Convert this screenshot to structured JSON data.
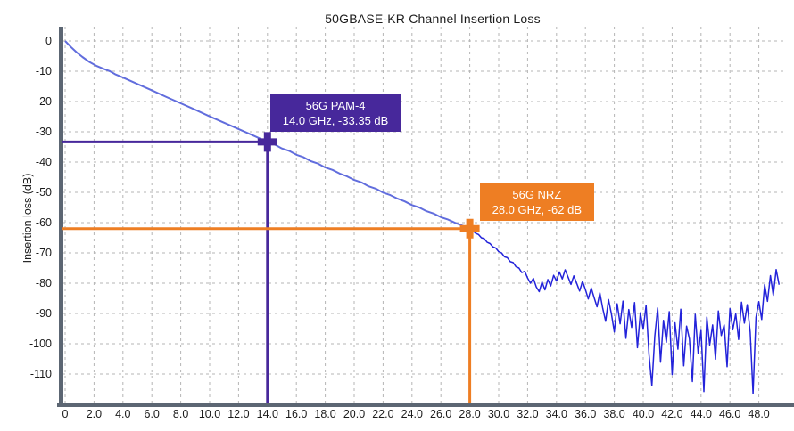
{
  "chart_data": {
    "type": "line",
    "title": "50GBASE-KR Channel Insertion Loss",
    "xlabel": "",
    "ylabel": "Insertion loss (dB)",
    "grid": true,
    "legend": "none",
    "xlim": [
      0,
      49.6
    ],
    "ylim": [
      -121,
      4.5
    ],
    "x_ticks": [
      0,
      2,
      4,
      6,
      8,
      10,
      12,
      14,
      16,
      18,
      20,
      22,
      24,
      26,
      28,
      30,
      32,
      34,
      36,
      38,
      40,
      42,
      44,
      46,
      48
    ],
    "x_tick_labels": [
      "0",
      "2.0",
      "4.0",
      "6.0",
      "8.0",
      "10.0",
      "12.0",
      "14.0",
      "16.0",
      "18.0",
      "20.0",
      "22.0",
      "24.0",
      "26.0",
      "28.0",
      "30.0",
      "32.0",
      "34.0",
      "36.0",
      "38.0",
      "40.0",
      "42.0",
      "44.0",
      "46.0",
      "48.0"
    ],
    "y_ticks": [
      0,
      -10,
      -20,
      -30,
      -40,
      -50,
      -60,
      -70,
      -80,
      -90,
      -100,
      -110
    ],
    "y_tick_labels": [
      "0",
      "-10",
      "-20",
      "-30",
      "-40",
      "-50",
      "-60",
      "-70",
      "-80",
      "-90",
      "-100",
      "-110"
    ],
    "axis_color": "#5c6673",
    "grid_color": "#b5b5b5",
    "series": [
      {
        "name": "channel-insertion-loss",
        "color_smooth": "#616ddd",
        "color_noisy": "#2323da",
        "split_x": 28,
        "points": [
          [
            0,
            0
          ],
          [
            0.4,
            -2
          ],
          [
            0.8,
            -3.8
          ],
          [
            1.2,
            -5.3
          ],
          [
            1.7,
            -7
          ],
          [
            2.2,
            -8.3
          ],
          [
            2.7,
            -9.3
          ],
          [
            3.1,
            -10
          ],
          [
            3.5,
            -11.1
          ],
          [
            4,
            -12.1
          ],
          [
            5,
            -14.2
          ],
          [
            6,
            -16.3
          ],
          [
            7,
            -18.5
          ],
          [
            8,
            -20.6
          ],
          [
            9,
            -22.7
          ],
          [
            10,
            -24.9
          ],
          [
            11,
            -27
          ],
          [
            12,
            -29.1
          ],
          [
            13,
            -31.2
          ],
          [
            14,
            -33.35
          ],
          [
            14.5,
            -34.2
          ],
          [
            15,
            -35.5
          ],
          [
            15.5,
            -36.3
          ],
          [
            16,
            -37.6
          ],
          [
            16.5,
            -38.4
          ],
          [
            17,
            -39.7
          ],
          [
            17.5,
            -40.5
          ],
          [
            18,
            -41.8
          ],
          [
            18.5,
            -42.6
          ],
          [
            19,
            -43.8
          ],
          [
            19.5,
            -44.7
          ],
          [
            20,
            -45.9
          ],
          [
            20.5,
            -46.7
          ],
          [
            21,
            -48
          ],
          [
            21.5,
            -48.8
          ],
          [
            22,
            -50.1
          ],
          [
            22.5,
            -50.9
          ],
          [
            23,
            -52.1
          ],
          [
            23.5,
            -53
          ],
          [
            24,
            -54.2
          ],
          [
            24.5,
            -55
          ],
          [
            25,
            -56.2
          ],
          [
            25.5,
            -57
          ],
          [
            26,
            -58.2
          ],
          [
            26.5,
            -59
          ],
          [
            27,
            -60.1
          ],
          [
            27.5,
            -61
          ],
          [
            28,
            -62
          ],
          [
            28.2,
            -62.6
          ],
          [
            28.4,
            -63.5
          ],
          [
            28.6,
            -63.9
          ],
          [
            28.8,
            -65
          ],
          [
            29,
            -65.3
          ],
          [
            29.2,
            -66.5
          ],
          [
            29.4,
            -66.9
          ],
          [
            29.6,
            -68
          ],
          [
            29.8,
            -68.4
          ],
          [
            30,
            -69.6
          ],
          [
            30.2,
            -70
          ],
          [
            30.4,
            -71.3
          ],
          [
            30.6,
            -71.6
          ],
          [
            30.8,
            -72.9
          ],
          [
            31,
            -73.2
          ],
          [
            31.2,
            -74.6
          ],
          [
            31.4,
            -75
          ],
          [
            31.6,
            -76.5
          ],
          [
            31.8,
            -76.1
          ],
          [
            32,
            -78.3
          ],
          [
            32.2,
            -80
          ],
          [
            32.4,
            -78.4
          ],
          [
            32.6,
            -81.2
          ],
          [
            32.8,
            -82.8
          ],
          [
            33,
            -79.6
          ],
          [
            33.2,
            -82.2
          ],
          [
            33.4,
            -78.8
          ],
          [
            33.6,
            -80.9
          ],
          [
            33.8,
            -77.4
          ],
          [
            34,
            -79.3
          ],
          [
            34.2,
            -76.3
          ],
          [
            34.4,
            -78.6
          ],
          [
            34.6,
            -75.6
          ],
          [
            34.8,
            -78
          ],
          [
            35,
            -80.4
          ],
          [
            35.2,
            -77.6
          ],
          [
            35.4,
            -80.1
          ],
          [
            35.6,
            -82.6
          ],
          [
            35.8,
            -79.4
          ],
          [
            36,
            -82.1
          ],
          [
            36.2,
            -85.2
          ],
          [
            36.4,
            -81.6
          ],
          [
            36.6,
            -84.7
          ],
          [
            36.8,
            -87.8
          ],
          [
            37,
            -83.2
          ],
          [
            37.2,
            -88.3
          ],
          [
            37.4,
            -92.6
          ],
          [
            37.6,
            -85.4
          ],
          [
            37.8,
            -90.2
          ],
          [
            38,
            -96.1
          ],
          [
            38.2,
            -86.8
          ],
          [
            38.4,
            -93.4
          ],
          [
            38.6,
            -85.9
          ],
          [
            38.8,
            -98.2
          ],
          [
            39,
            -88.7
          ],
          [
            39.2,
            -94.6
          ],
          [
            39.4,
            -86.4
          ],
          [
            39.6,
            -101.3
          ],
          [
            39.8,
            -89.8
          ],
          [
            40,
            -95.2
          ],
          [
            40.2,
            -87.3
          ],
          [
            40.4,
            -103.6
          ],
          [
            40.6,
            -113.8
          ],
          [
            40.8,
            -97.4
          ],
          [
            41,
            -88.2
          ],
          [
            41.2,
            -106.1
          ],
          [
            41.4,
            -92.3
          ],
          [
            41.6,
            -99.5
          ],
          [
            41.8,
            -89.4
          ],
          [
            42,
            -110.2
          ],
          [
            42.2,
            -93.1
          ],
          [
            42.4,
            -101.8
          ],
          [
            42.6,
            -88.6
          ],
          [
            42.8,
            -107.3
          ],
          [
            43,
            -94.2
          ],
          [
            43.2,
            -98.4
          ],
          [
            43.4,
            -112.5
          ],
          [
            43.6,
            -90.3
          ],
          [
            43.8,
            -103.2
          ],
          [
            44,
            -95.6
          ],
          [
            44.2,
            -115.8
          ],
          [
            44.4,
            -91.2
          ],
          [
            44.6,
            -100.4
          ],
          [
            44.8,
            -93.8
          ],
          [
            45,
            -105.1
          ],
          [
            45.2,
            -89.2
          ],
          [
            45.4,
            -97.3
          ],
          [
            45.6,
            -93.8
          ],
          [
            45.8,
            -107.6
          ],
          [
            46,
            -88.4
          ],
          [
            46.2,
            -95.4
          ],
          [
            46.4,
            -90.1
          ],
          [
            46.6,
            -98.6
          ],
          [
            46.8,
            -86.3
          ],
          [
            47,
            -93.2
          ],
          [
            47.2,
            -87.1
          ],
          [
            47.4,
            -96.2
          ],
          [
            47.6,
            -116.5
          ],
          [
            47.8,
            -91.3
          ],
          [
            48,
            -86.1
          ],
          [
            48.2,
            -92
          ],
          [
            48.4,
            -80.5
          ],
          [
            48.6,
            -86
          ],
          [
            48.8,
            -77.5
          ],
          [
            49,
            -84
          ],
          [
            49.2,
            -75.5
          ],
          [
            49.4,
            -80.5
          ]
        ]
      }
    ],
    "annotations": [
      {
        "name": "56g-pam4",
        "title": "56G PAM-4",
        "value_label": "14.0 GHz, -33.35 dB",
        "x": 14.0,
        "y": -33.35,
        "color": "#47289b",
        "box_dx": 3,
        "box_dy": -53
      },
      {
        "name": "56g-nrz",
        "title": "56G NRZ",
        "value_label": "28.0 GHz, -62 dB",
        "x": 28.0,
        "y": -62,
        "color": "#ee7e23",
        "box_dx": 11,
        "box_dy": -51
      }
    ]
  }
}
